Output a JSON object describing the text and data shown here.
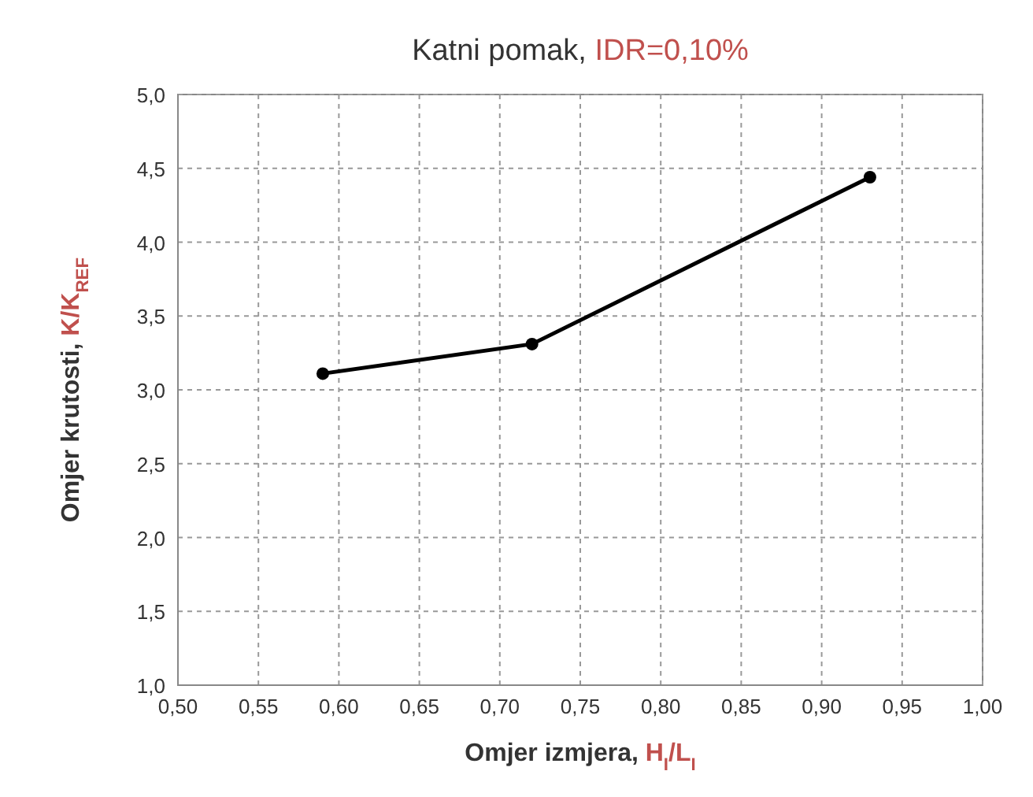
{
  "chart_data": {
    "type": "line",
    "title": "Katni pomak, IDR=0,10%",
    "xlabel": "Omjer izmjera, H$_{I}$/L$_{I}$",
    "ylabel": "Omjer krutosti, K/K$_{REF}$",
    "x": [
      0.59,
      0.72,
      0.93
    ],
    "series": [
      {
        "color": "#000000",
        "values": [
          3.11,
          3.31,
          4.44
        ]
      }
    ],
    "xlim": [
      0.5,
      1.0
    ],
    "xticks": [
      {
        "value": 0.5,
        "label": "0,50"
      },
      {
        "value": 0.55,
        "label": "0,55"
      },
      {
        "value": 0.6,
        "label": "0,60"
      },
      {
        "value": 0.65,
        "label": "0,65"
      },
      {
        "value": 0.7,
        "label": "0,70"
      },
      {
        "value": 0.75,
        "label": "0,75"
      },
      {
        "value": 0.8,
        "label": "0,80"
      },
      {
        "value": 0.85,
        "label": "0,85"
      },
      {
        "value": 0.9,
        "label": "0,90"
      },
      {
        "value": 0.95,
        "label": "0,95"
      },
      {
        "value": 1.0,
        "label": "1,00"
      }
    ],
    "ylim": [
      1,
      5
    ],
    "yticks": [
      {
        "value": 1,
        "label": "1,0"
      },
      {
        "value": 1.5,
        "label": "1,5"
      },
      {
        "value": 2,
        "label": "2,0"
      },
      {
        "value": 2.5,
        "label": "2,5"
      },
      {
        "value": 3,
        "label": "3,0"
      },
      {
        "value": 3.5,
        "label": "3,5"
      },
      {
        "value": 4,
        "label": "4,0"
      },
      {
        "value": 4.5,
        "label": "4,5"
      },
      {
        "value": 5,
        "label": "5,0"
      }
    ],
    "grid": true,
    "marker": "circle",
    "line_style": "solid"
  }
}
